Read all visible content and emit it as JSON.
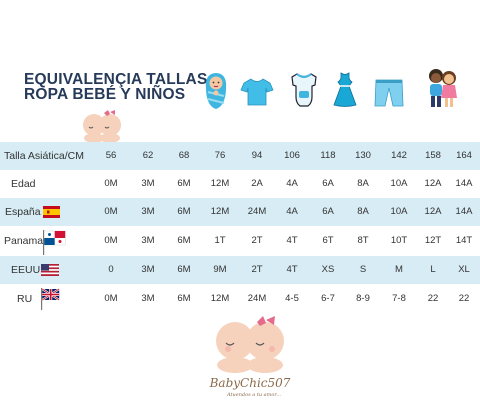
{
  "title": {
    "line1": "EQUIVALENÇIA TALLAS",
    "line2": "ROPA BEBÉ Y NIÑOS"
  },
  "icons": [
    "swaddled-baby-icon",
    "tshirt-icon",
    "bodysuit-icon",
    "dress-icon",
    "pants-icon",
    "children-icon"
  ],
  "brand": {
    "name": "BabyChic507",
    "tagline": "Atuendos a tu amor..."
  },
  "rows": [
    {
      "label": "Talla Asiática/CM",
      "flag": "",
      "cells": [
        "56",
        "62",
        "68",
        "76",
        "94",
        "106",
        "118",
        "130",
        "142",
        "158",
        "164"
      ]
    },
    {
      "label": "Edad",
      "flag": "",
      "cells": [
        "0M",
        "3M",
        "6M",
        "12M",
        "2A",
        "4A",
        "6A",
        "8A",
        "10A",
        "12A",
        "14A"
      ]
    },
    {
      "label": "España",
      "flag": "spain-flag-icon",
      "cells": [
        "0M",
        "3M",
        "6M",
        "12M",
        "24M",
        "4A",
        "6A",
        "8A",
        "10A",
        "12A",
        "14A"
      ]
    },
    {
      "label": "Panama",
      "flag": "panama-flag-icon",
      "cells": [
        "0M",
        "3M",
        "6M",
        "1T",
        "2T",
        "4T",
        "6T",
        "8T",
        "10T",
        "12T",
        "14T"
      ]
    },
    {
      "label": "EEUU",
      "flag": "usa-flag-icon",
      "cells": [
        "0",
        "3M",
        "6M",
        "9M",
        "2T",
        "4T",
        "XS",
        "S",
        "M",
        "L",
        "XL"
      ]
    },
    {
      "label": "RU",
      "flag": "uk-flag-icon",
      "cells": [
        "0M",
        "3M",
        "6M",
        "12M",
        "24M",
        "4-5",
        "6-7",
        "8-9",
        "7-8",
        "22",
        "22"
      ]
    }
  ],
  "colors": {
    "row_blue": "#d7ecf5",
    "title": "#263a59",
    "icon_blue": "#41bde8"
  }
}
